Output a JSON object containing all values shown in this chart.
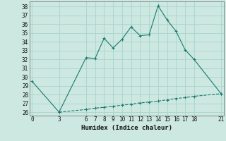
{
  "xlabel": "Humidex (Indice chaleur)",
  "bg_color": "#cce8e0",
  "line_color": "#1a7a6e",
  "grid_color": "#a8d5cc",
  "line1_x": [
    0,
    3,
    6,
    7,
    8,
    9,
    10,
    11,
    12,
    13,
    14,
    15,
    16,
    17,
    18,
    21
  ],
  "line1_y": [
    29.5,
    26.0,
    32.2,
    32.1,
    34.4,
    33.3,
    34.3,
    35.7,
    34.7,
    34.8,
    38.1,
    36.5,
    35.2,
    33.1,
    32.0,
    28.1
  ],
  "line2_x": [
    3,
    6,
    7,
    8,
    9,
    10,
    11,
    12,
    13,
    14,
    15,
    16,
    17,
    18,
    21
  ],
  "line2_y": [
    26.0,
    26.3,
    26.45,
    26.55,
    26.65,
    26.8,
    26.9,
    27.05,
    27.15,
    27.25,
    27.4,
    27.55,
    27.65,
    27.8,
    28.1
  ],
  "xticks": [
    0,
    3,
    6,
    7,
    8,
    9,
    10,
    11,
    12,
    13,
    14,
    15,
    16,
    17,
    18,
    21
  ],
  "yticks": [
    26,
    27,
    28,
    29,
    30,
    31,
    32,
    33,
    34,
    35,
    36,
    37,
    38
  ],
  "xlim": [
    -0.3,
    21.3
  ],
  "ylim": [
    25.6,
    38.6
  ]
}
